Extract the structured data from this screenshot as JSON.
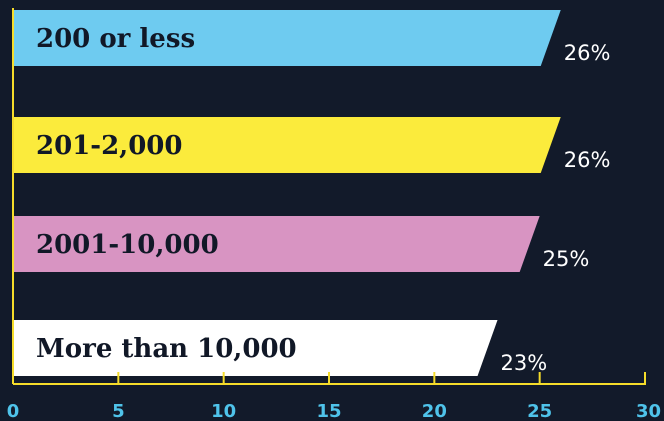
{
  "chart_data": {
    "type": "bar",
    "orientation": "horizontal",
    "categories": [
      "200 or less",
      "201-2,000",
      "2001-10,000",
      "More than 10,000"
    ],
    "values": [
      26,
      26,
      25,
      23
    ],
    "value_labels": [
      "26%",
      "26%",
      "25%",
      "23%"
    ],
    "bar_colors": [
      "#6ecbf0",
      "#fbeb3c",
      "#d894c2",
      "#ffffff"
    ],
    "xlim": [
      0,
      30
    ],
    "xticks": [
      0,
      5,
      10,
      15,
      20,
      25,
      30
    ],
    "xtick_labels": [
      "0",
      "5",
      "10",
      "15",
      "20",
      "25",
      "30"
    ],
    "title": "",
    "xlabel": "",
    "ylabel": "",
    "grid": false,
    "axis_color": "#f5dc2a",
    "tick_label_color": "#4fc3ea",
    "background": "#121a2a"
  }
}
